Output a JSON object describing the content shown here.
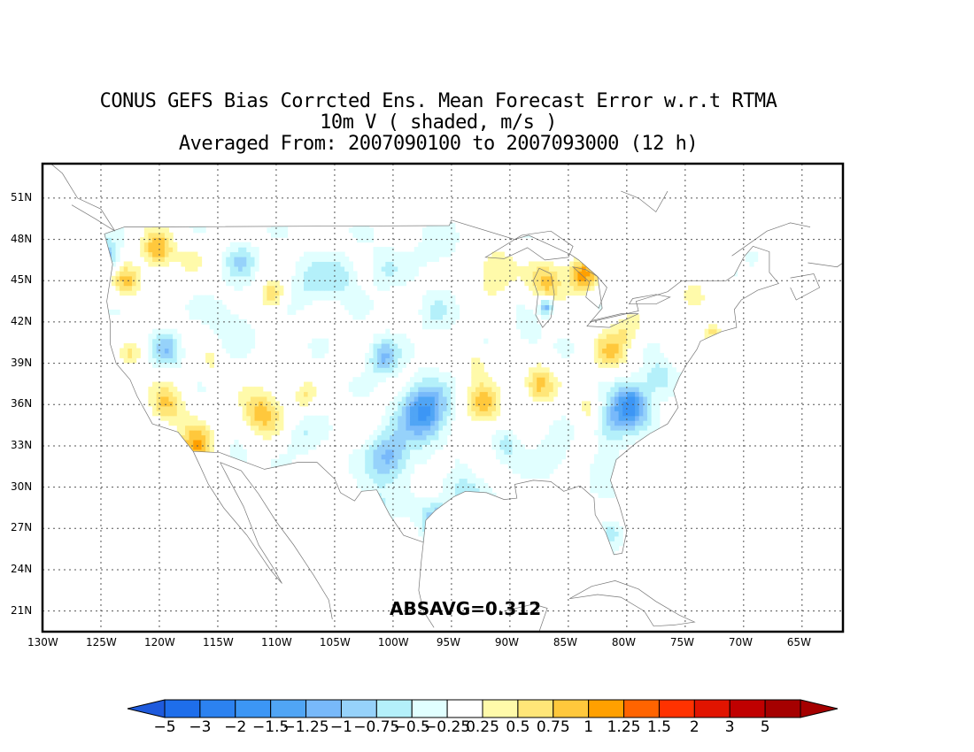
{
  "title": {
    "line1": "CONUS GEFS Bias Corrcted Ens. Mean Forecast Error w.r.t RTMA",
    "line2": "10m V ( shaded, m/s )",
    "line3": "Averaged From: 2007090100 to 2007093000 (12 h)"
  },
  "annotation": "ABSAVG=0.312",
  "axes": {
    "lat_labels": [
      "51N",
      "48N",
      "45N",
      "42N",
      "39N",
      "36N",
      "33N",
      "30N",
      "27N",
      "24N",
      "21N"
    ],
    "lon_labels": [
      "130W",
      "125W",
      "120W",
      "115W",
      "110W",
      "105W",
      "100W",
      "95W",
      "90W",
      "85W",
      "80W",
      "75W",
      "70W",
      "65W"
    ]
  },
  "colorbar": {
    "labels": [
      "−5",
      "−3",
      "−2",
      "−1.5",
      "−1.25",
      "−1",
      "−0.75",
      "−0.5",
      "−0.25",
      "0.25",
      "0.5",
      "0.75",
      "1",
      "1.25",
      "1.5",
      "2",
      "3",
      "5"
    ],
    "colors": [
      "#1e6eeb",
      "#2c82f0",
      "#3c96f5",
      "#50a5f5",
      "#78b9fa",
      "#96d2fa",
      "#b4f0fa",
      "#e1ffff",
      "#ffffff",
      "#fffaaa",
      "#ffe678",
      "#ffc83c",
      "#ffa000",
      "#ff6400",
      "#ff3200",
      "#e11400",
      "#c00000",
      "#a50000"
    ],
    "under_color": "#1e5adc",
    "over_color": "#a50000"
  },
  "chart_data": {
    "type": "heatmap",
    "title": "CONUS GEFS Bias Corrcted Ens. Mean Forecast Error w.r.t RTMA",
    "subtitle": "10m V ( shaded, m/s )",
    "xlim": [
      -130,
      -61.5
    ],
    "ylim": [
      19.5,
      53.5
    ],
    "unit": "m/s",
    "grid": true,
    "blobs": [
      {
        "lon": -125.0,
        "lat": 46.5,
        "value": -1.3,
        "r": 1.2
      },
      {
        "lon": -120.3,
        "lat": 47.1,
        "value": 1.1,
        "r": 1.4
      },
      {
        "lon": -123.0,
        "lat": 44.8,
        "value": 0.9,
        "r": 1.3
      },
      {
        "lon": -117.5,
        "lat": 46.5,
        "value": 0.4,
        "r": 1.2
      },
      {
        "lon": -113.2,
        "lat": 46.3,
        "value": -0.6,
        "r": 1.3
      },
      {
        "lon": -110.5,
        "lat": 43.8,
        "value": 0.9,
        "r": 1.1
      },
      {
        "lon": -107.2,
        "lat": 44.5,
        "value": -0.4,
        "r": 2.0
      },
      {
        "lon": -104.5,
        "lat": 45.2,
        "value": -0.5,
        "r": 1.4
      },
      {
        "lon": -101.0,
        "lat": 45.8,
        "value": -0.35,
        "r": 1.6
      },
      {
        "lon": -96.5,
        "lat": 47.0,
        "value": -0.3,
        "r": 1.8
      },
      {
        "lon": -122.5,
        "lat": 39.5,
        "value": 0.6,
        "r": 1.0
      },
      {
        "lon": -119.5,
        "lat": 39.8,
        "value": -0.8,
        "r": 1.2
      },
      {
        "lon": -115.7,
        "lat": 39.0,
        "value": 0.4,
        "r": 1.1
      },
      {
        "lon": -119.5,
        "lat": 35.8,
        "value": 0.9,
        "r": 1.6
      },
      {
        "lon": -117.0,
        "lat": 32.8,
        "value": 1.2,
        "r": 1.5
      },
      {
        "lon": -111.5,
        "lat": 35.3,
        "value": 1.0,
        "r": 1.8
      },
      {
        "lon": -107.8,
        "lat": 36.5,
        "value": 0.6,
        "r": 1.0
      },
      {
        "lon": -113.5,
        "lat": 32.0,
        "value": -0.5,
        "r": 1.0
      },
      {
        "lon": -108.0,
        "lat": 33.5,
        "value": -0.35,
        "r": 1.4
      },
      {
        "lon": -101.0,
        "lat": 39.3,
        "value": -0.9,
        "r": 1.3
      },
      {
        "lon": -97.5,
        "lat": 35.3,
        "value": -1.5,
        "r": 2.0
      },
      {
        "lon": -100.5,
        "lat": 32.0,
        "value": -1.0,
        "r": 1.8
      },
      {
        "lon": -96.5,
        "lat": 27.5,
        "value": -1.0,
        "r": 1.3
      },
      {
        "lon": -94.0,
        "lat": 29.5,
        "value": -0.5,
        "r": 1.8
      },
      {
        "lon": -96.0,
        "lat": 31.5,
        "value": 0.6,
        "r": 0.8
      },
      {
        "lon": -102.0,
        "lat": 28.5,
        "value": -0.5,
        "r": 1.5
      },
      {
        "lon": -90.5,
        "lat": 33.0,
        "value": -0.5,
        "r": 1.2
      },
      {
        "lon": -86.5,
        "lat": 32.0,
        "value": -0.4,
        "r": 1.5
      },
      {
        "lon": -81.5,
        "lat": 34.5,
        "value": -0.8,
        "r": 1.5
      },
      {
        "lon": -79.8,
        "lat": 35.9,
        "value": -1.5,
        "r": 1.5
      },
      {
        "lon": -77.5,
        "lat": 37.8,
        "value": -0.6,
        "r": 1.3
      },
      {
        "lon": -82.0,
        "lat": 29.5,
        "value": -0.3,
        "r": 1.6
      },
      {
        "lon": -81.5,
        "lat": 26.5,
        "value": -0.4,
        "r": 0.9
      },
      {
        "lon": -92.5,
        "lat": 35.8,
        "value": 1.0,
        "r": 1.6
      },
      {
        "lon": -87.7,
        "lat": 37.3,
        "value": 1.0,
        "r": 1.4
      },
      {
        "lon": -93.0,
        "lat": 38.8,
        "value": 0.5,
        "r": 1.0
      },
      {
        "lon": -83.5,
        "lat": 35.5,
        "value": 0.5,
        "r": 1.2
      },
      {
        "lon": -81.5,
        "lat": 39.8,
        "value": 0.8,
        "r": 1.6
      },
      {
        "lon": -80.0,
        "lat": 41.5,
        "value": 0.5,
        "r": 1.2
      },
      {
        "lon": -74.5,
        "lat": 43.5,
        "value": 0.6,
        "r": 1.4
      },
      {
        "lon": -72.8,
        "lat": 41.0,
        "value": 0.7,
        "r": 0.8
      },
      {
        "lon": -91.5,
        "lat": 45.5,
        "value": 0.7,
        "r": 1.8
      },
      {
        "lon": -87.0,
        "lat": 44.8,
        "value": 1.0,
        "r": 1.5
      },
      {
        "lon": -84.0,
        "lat": 45.3,
        "value": 1.3,
        "r": 1.3
      },
      {
        "lon": -87.0,
        "lat": 43.0,
        "value": -1.2,
        "r": 0.6
      },
      {
        "lon": -88.5,
        "lat": 41.0,
        "value": -0.4,
        "r": 1.0
      },
      {
        "lon": -69.5,
        "lat": 46.5,
        "value": -0.4,
        "r": 0.5
      },
      {
        "lon": -114.0,
        "lat": 42.0,
        "value": -0.3,
        "r": 2.0
      },
      {
        "lon": -96.5,
        "lat": 42.5,
        "value": -0.3,
        "r": 1.6
      }
    ]
  }
}
